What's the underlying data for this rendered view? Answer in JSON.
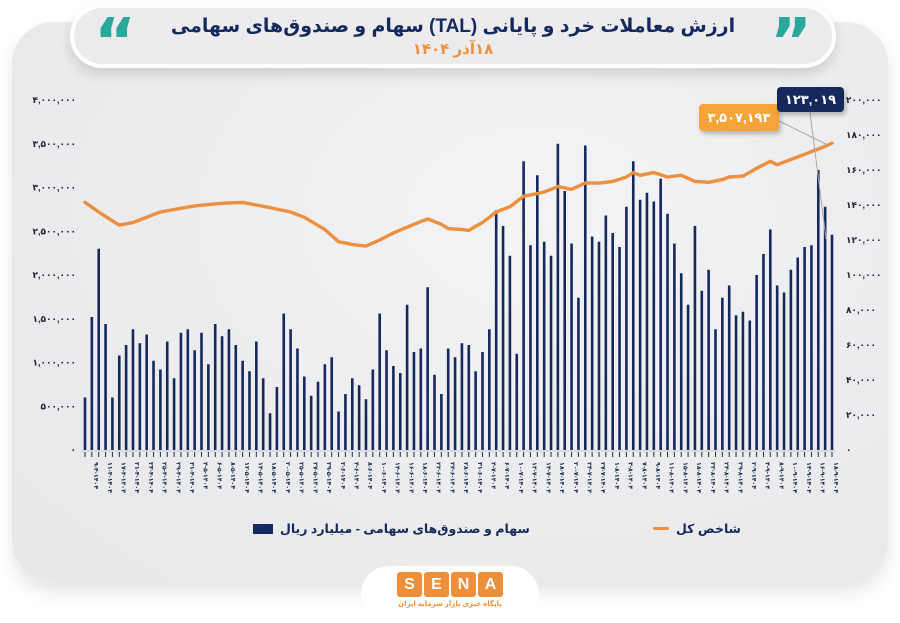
{
  "title": {
    "line1": "ارزش معاملات خرد و پایانی (TAL) سهام و صندوق‌های سهامی",
    "date": "۱۸آذر ۱۴۰۴"
  },
  "colors": {
    "navy": "#15295d",
    "orange_line": "#ec8f3f",
    "orange_box": "#f6a33a",
    "teal": "#2aa89a",
    "card_gray": "#ececee",
    "axis_text": "#1f2430",
    "callout_line": "#a9a9a9"
  },
  "persian_digits": "۰۱۲۳۴۵۶۷۸۹",
  "legend": {
    "bars_label": "سهام و صندوق‌های سهامی - میلیارد ریال",
    "line_label": "شاخص کل"
  },
  "annotations": {
    "line_last": {
      "label": "۳,۵۰۷,۱۹۳",
      "value": 3507193
    },
    "bar_last": {
      "label": "۱۲۳,۰۱۹",
      "value": 123019
    }
  },
  "footer_logo": {
    "letters": [
      "S",
      "E",
      "N",
      "A"
    ],
    "tagline": "پایگاه خبری بازار سرمایه ایران"
  },
  "chart_data": {
    "type": "bar",
    "title": "ارزش معاملات خرد و پایانی (TAL) سهام و صندوق‌های سهامی",
    "subtitle": "۱۸آذر ۱۴۰۴",
    "xlabel": "",
    "ylabel_left": "شاخص کل",
    "ylabel_right": "میلیارد ریال",
    "grid": false,
    "legend_position": "bottom",
    "left_axis": {
      "min": 0,
      "max": 4000000,
      "step": 500000
    },
    "right_axis": {
      "min": 0,
      "max": 200000,
      "step": 20000
    },
    "categories": [
      "1404-4-8",
      "1404-4-9",
      "1404-4-10",
      "1404-4-11",
      "1404-4-16",
      "1404-4-17",
      "1404-4-18",
      "1404-4-21",
      "1404-4-22",
      "1404-4-23",
      "1404-4-24",
      "1404-4-25",
      "1404-4-28",
      "1404-4-29",
      "1404-4-30",
      "1404-4-31",
      "1404-5-1",
      "1404-5-4",
      "1404-5-5",
      "1404-5-6",
      "1404-5-7",
      "1404-5-8",
      "1404-5-11",
      "1404-5-12",
      "1404-5-13",
      "1404-5-14",
      "1404-5-15",
      "1404-5-18",
      "1404-5-19",
      "1404-5-20",
      "1404-5-21",
      "1404-5-25",
      "1404-5-26",
      "1404-5-27",
      "1404-5-28",
      "1404-5-29",
      "1404-6-1",
      "1404-6-2",
      "1404-6-3",
      "1404-6-4",
      "1404-6-7",
      "1404-6-8",
      "1404-6-9",
      "1404-6-10",
      "1404-6-11",
      "1404-6-14",
      "1404-6-15",
      "1404-6-16",
      "1404-6-17",
      "1404-6-18",
      "1404-6-21",
      "1404-6-22",
      "1404-6-23",
      "1404-6-24",
      "1404-6-25",
      "1404-6-28",
      "1404-6-29",
      "1404-6-31",
      "1404-7-3",
      "1404-7-4",
      "1404-7-5",
      "1404-7-6",
      "1404-7-7",
      "1404-7-10",
      "1404-7-11",
      "1404-7-12",
      "1404-7-13",
      "1404-7-14",
      "1404-7-17",
      "1404-7-18",
      "1404-7-19",
      "1404-7-20",
      "1404-7-21",
      "1404-7-24",
      "1404-7-26",
      "1404-7-27",
      "1404-7-28",
      "1404-8-1",
      "1404-8-2",
      "1404-8-3",
      "1404-8-4",
      "1404-8-7",
      "1404-8-8",
      "1404-8-9",
      "1404-8-10",
      "1404-8-11",
      "1404-8-14",
      "1404-8-15",
      "1404-8-17",
      "1404-8-18",
      "1404-8-21",
      "1404-8-22",
      "1404-8-23",
      "1404-8-24",
      "1404-8-28",
      "1404-8-29",
      "1404-9-1",
      "1404-9-2",
      "1404-9-3",
      "1404-9-4",
      "1404-9-7",
      "1404-9-8",
      "1404-9-9",
      "1404-9-10",
      "1404-9-11",
      "1404-9-14",
      "1404-9-15",
      "1404-9-16",
      "1404-9-17",
      "1404-9-18"
    ],
    "bar_series": {
      "name": "سهام و صندوق‌های سهامی - میلیارد ریال",
      "axis": "right",
      "color": "#15295d",
      "values": [
        30000,
        76000,
        115000,
        72000,
        30000,
        54000,
        60000,
        69000,
        61000,
        66000,
        51000,
        46000,
        62000,
        41000,
        67000,
        69000,
        57000,
        67000,
        49000,
        72000,
        65000,
        69000,
        60000,
        51000,
        45000,
        62000,
        41000,
        21000,
        36000,
        78000,
        69000,
        58000,
        42000,
        31000,
        39000,
        49000,
        53000,
        22000,
        32000,
        41000,
        37000,
        29000,
        46000,
        78000,
        57000,
        48000,
        44000,
        83000,
        56000,
        58000,
        93000,
        43000,
        32000,
        58000,
        53000,
        61000,
        60000,
        45000,
        56000,
        69000,
        137000,
        128000,
        111000,
        55000,
        165000,
        117000,
        157000,
        119000,
        111000,
        175000,
        148000,
        118000,
        87000,
        174000,
        122000,
        119000,
        134000,
        124000,
        116000,
        139000,
        165000,
        143000,
        147000,
        142000,
        155000,
        135000,
        118000,
        101000,
        83000,
        128000,
        91000,
        103000,
        69000,
        87000,
        94000,
        77000,
        79000,
        74000,
        100000,
        112000,
        126000,
        94000,
        90000,
        103000,
        110000,
        116000,
        117000,
        160000,
        139000,
        123019
      ]
    },
    "line_series": {
      "name": "شاخص کل",
      "axis": "left",
      "color": "#ec8f3f",
      "anchor_points": [
        [
          0,
          2830000
        ],
        [
          2,
          2720000
        ],
        [
          5,
          2570000
        ],
        [
          7,
          2600000
        ],
        [
          11,
          2720000
        ],
        [
          16,
          2790000
        ],
        [
          20,
          2820000
        ],
        [
          23,
          2830000
        ],
        [
          27,
          2770000
        ],
        [
          30,
          2720000
        ],
        [
          32,
          2660000
        ],
        [
          35,
          2520000
        ],
        [
          37,
          2380000
        ],
        [
          39,
          2350000
        ],
        [
          41,
          2330000
        ],
        [
          43,
          2400000
        ],
        [
          45,
          2480000
        ],
        [
          48,
          2580000
        ],
        [
          50,
          2640000
        ],
        [
          52,
          2580000
        ],
        [
          53,
          2530000
        ],
        [
          55,
          2520000
        ],
        [
          56,
          2510000
        ],
        [
          58,
          2600000
        ],
        [
          60,
          2720000
        ],
        [
          62,
          2780000
        ],
        [
          64,
          2900000
        ],
        [
          66,
          2930000
        ],
        [
          67,
          2950000
        ],
        [
          69,
          3010000
        ],
        [
          71,
          2980000
        ],
        [
          73,
          3050000
        ],
        [
          75,
          3050000
        ],
        [
          77,
          3070000
        ],
        [
          79,
          3120000
        ],
        [
          80,
          3170000
        ],
        [
          81,
          3140000
        ],
        [
          83,
          3170000
        ],
        [
          85,
          3120000
        ],
        [
          87,
          3140000
        ],
        [
          89,
          3070000
        ],
        [
          91,
          3060000
        ],
        [
          93,
          3090000
        ],
        [
          94,
          3120000
        ],
        [
          96,
          3130000
        ],
        [
          98,
          3220000
        ],
        [
          100,
          3300000
        ],
        [
          101,
          3260000
        ],
        [
          103,
          3320000
        ],
        [
          105,
          3380000
        ],
        [
          107,
          3440000
        ],
        [
          108,
          3470000
        ],
        [
          109,
          3507193
        ]
      ],
      "last_value": 3507193
    }
  }
}
